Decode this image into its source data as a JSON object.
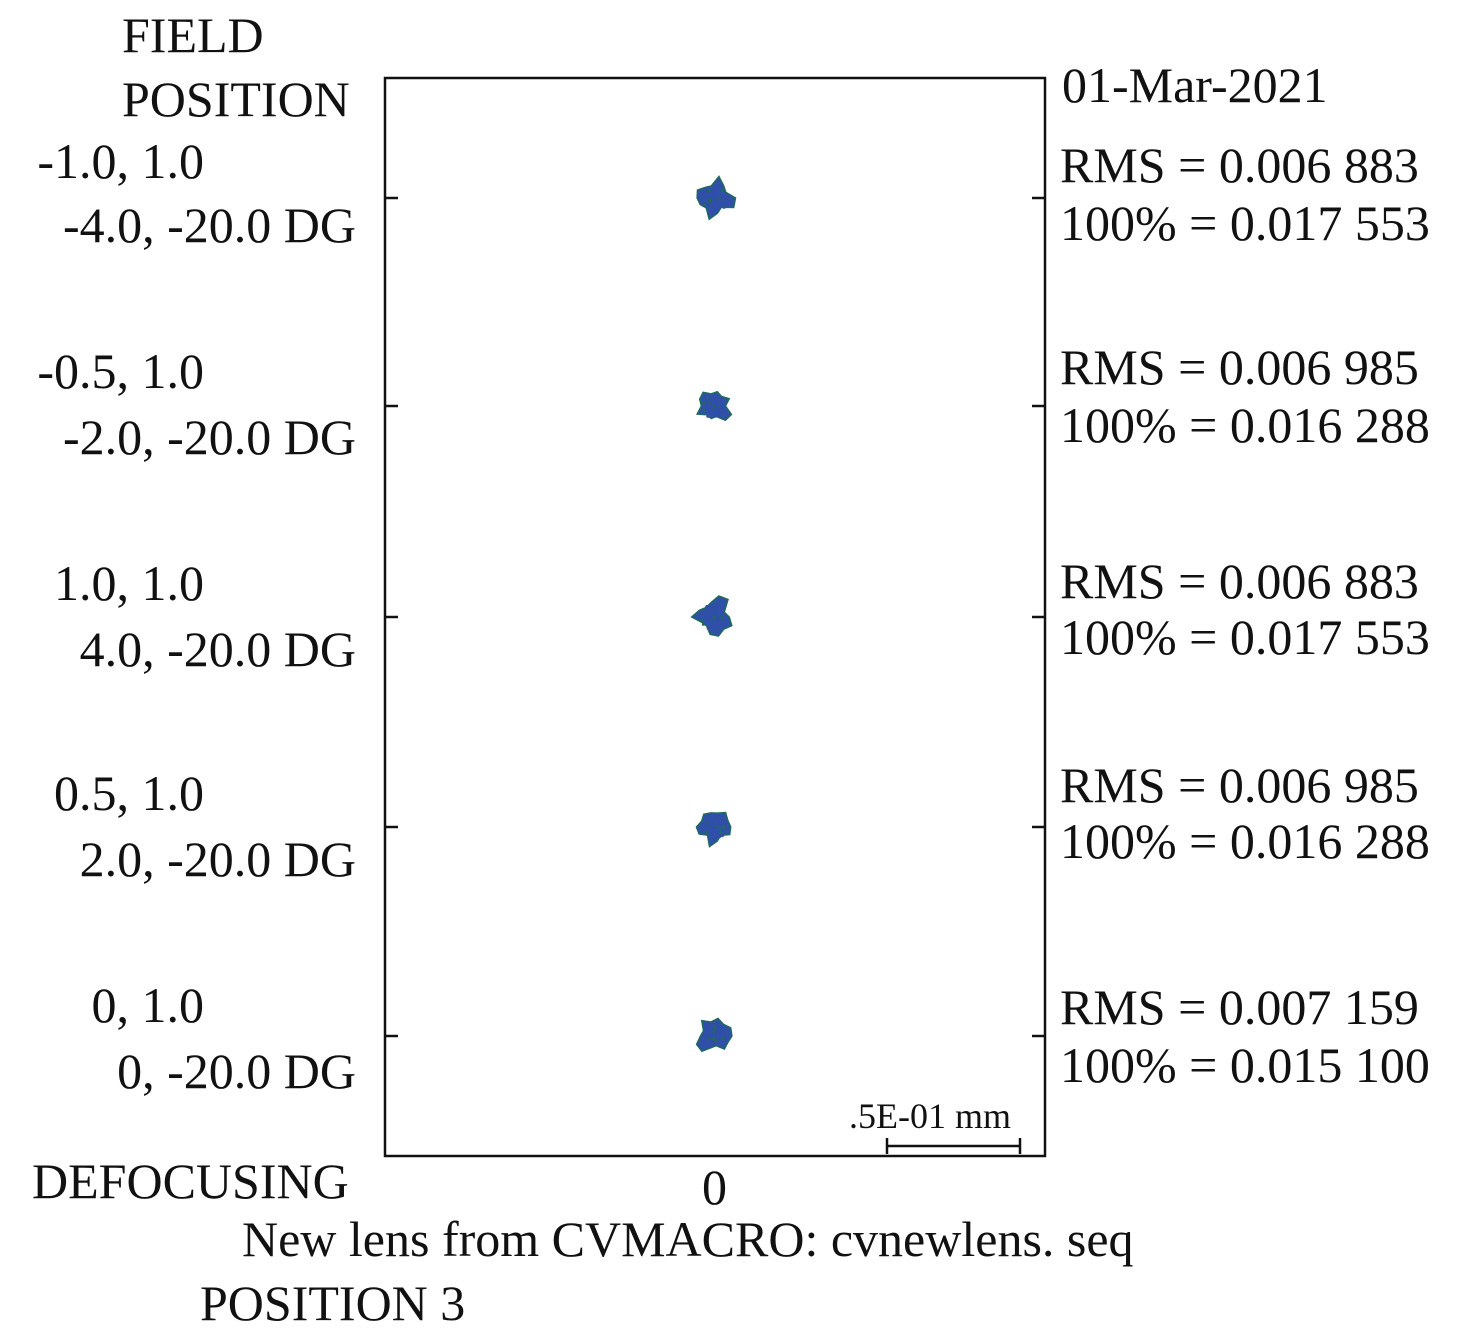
{
  "header": {
    "field_label_1": "FIELD",
    "field_label_2": "POSITION",
    "date": "01-Mar-2021"
  },
  "footer": {
    "defocusing_label": "DEFOCUSING",
    "defocus_value": "0",
    "lens_title": "New lens from CVMACRO: cvnewlens. seq",
    "position_label": "POSITION 3"
  },
  "scale_bar": {
    "label": ".5E-01 mm",
    "length_mm": 0.05
  },
  "colors": {
    "spot": "#2f4fa8",
    "spot_dark": "#1f6a5a",
    "frame": "#111111"
  },
  "chart_data": {
    "type": "scatter",
    "title": "",
    "xlabel": "DEFOCUSING",
    "ylabel": "FIELD POSITION",
    "fields": [
      {
        "rel": "-1.0, 1.0",
        "angle": "-4.0, -20.0 DG",
        "rms_label": "RMS = 0.006 883",
        "max_label": "100% = 0.017 553",
        "rms": 0.006883,
        "max": 0.017553
      },
      {
        "rel": "-0.5, 1.0",
        "angle": "-2.0, -20.0 DG",
        "rms_label": "RMS = 0.006 985",
        "max_label": "100% = 0.016 288",
        "rms": 0.006985,
        "max": 0.016288
      },
      {
        "rel": "1.0, 1.0",
        "angle": "4.0, -20.0 DG",
        "rms_label": "RMS = 0.006 883",
        "max_label": "100% = 0.017 553",
        "rms": 0.006883,
        "max": 0.017553
      },
      {
        "rel": "0.5, 1.0",
        "angle": "2.0, -20.0 DG",
        "rms_label": "RMS = 0.006 985",
        "max_label": "100% = 0.016 288",
        "rms": 0.006985,
        "max": 0.016288
      },
      {
        "rel": "0, 1.0",
        "angle": "0, -20.0 DG",
        "rms_label": "RMS = 0.007 159",
        "max_label": "100% = 0.015 100",
        "rms": 0.007159,
        "max": 0.0151
      }
    ]
  }
}
